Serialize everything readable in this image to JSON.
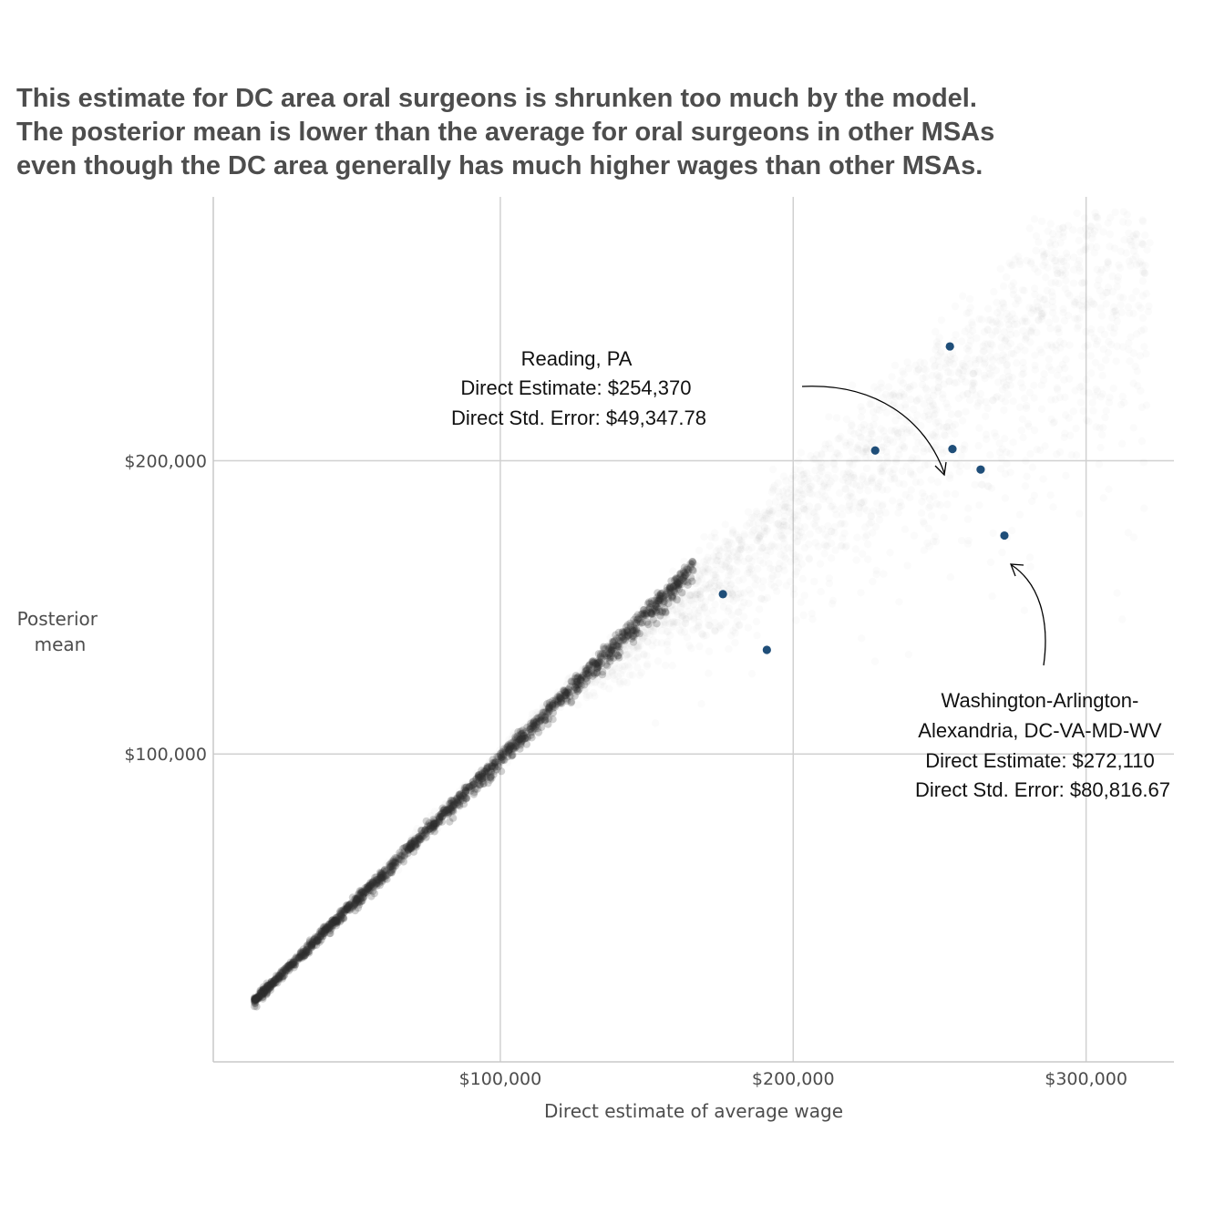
{
  "title": {
    "lines": [
      "This estimate for DC area oral surgeons is shrunken too much by the model.",
      "The posterior mean is lower than the average for oral surgeons in other MSAs",
      "even though the DC area generally has much higher wages than other MSAs."
    ]
  },
  "chart_data": {
    "type": "scatter",
    "xlabel": "Direct estimate of average wage",
    "ylabel_lines": [
      "Posterior",
      "mean"
    ],
    "xlim": [
      2000,
      330000
    ],
    "ylim": [
      -5000,
      290000
    ],
    "x_ticks": [
      100000,
      200000,
      300000
    ],
    "x_tick_labels": [
      "$100,000",
      "$200,000",
      "$300,000"
    ],
    "y_ticks": [
      100000,
      200000
    ],
    "y_tick_labels": [
      "$100,000",
      "$200,000"
    ],
    "grid": true,
    "series": [
      {
        "color": "#2e2e2e",
        "opacity": 0.02,
        "description": "all occupation-MSA estimates (thousands of points)",
        "x_range": [
          15000,
          320000
        ],
        "y_range": [
          15000,
          285000
        ],
        "trend": "posterior mean ~ direct estimate at low wages; increasing spread/shrinkage above ~$150,000"
      },
      {
        "color": "#1f4e79",
        "description": "highlighted oral surgeon estimates",
        "points": [
          {
            "x": 176000,
            "y": 154500
          },
          {
            "x": 191000,
            "y": 135500
          },
          {
            "x": 228000,
            "y": 203500
          },
          {
            "x": 253500,
            "y": 239000
          },
          {
            "x": 254370,
            "y": 204000
          },
          {
            "x": 264000,
            "y": 197000
          },
          {
            "x": 272110,
            "y": 174500
          }
        ]
      }
    ],
    "annotations": [
      {
        "lines": [
          "Reading, PA",
          "Direct Estimate: $254,370",
          "Direct Std. Error: $49,347.78"
        ],
        "target": {
          "x": 254370,
          "y": 204000
        }
      },
      {
        "lines": [
          "Washington-Arlington-",
          "Alexandria, DC-VA-MD-WV",
          "Direct Estimate: $272,110",
          "Direct Std. Error: $80,816.67"
        ],
        "target": {
          "x": 272110,
          "y": 174500
        }
      }
    ]
  }
}
